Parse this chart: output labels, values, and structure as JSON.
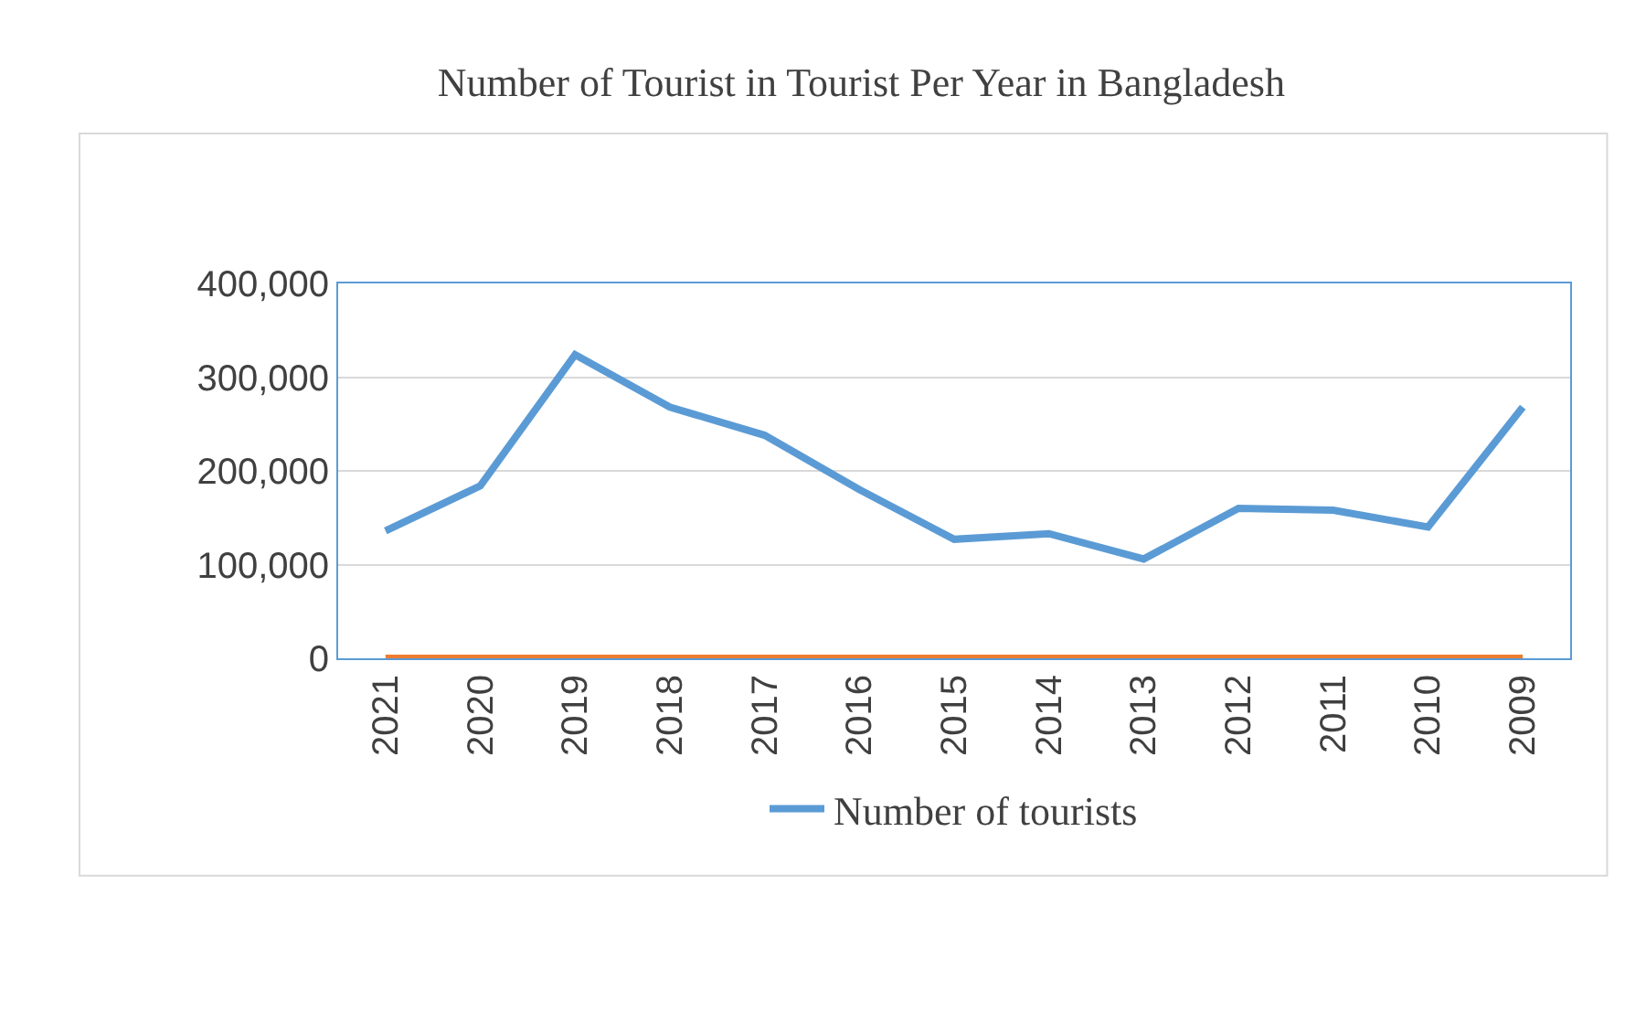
{
  "chart_data": {
    "type": "line",
    "title": "Number of Tourist in Tourist Per Year in Bangladesh",
    "categories": [
      "2021",
      "2020",
      "2019",
      "2018",
      "2017",
      "2016",
      "2015",
      "2014",
      "2013",
      "2012",
      "2011",
      "2010",
      "2009"
    ],
    "series": [
      {
        "name": "Number of tourists",
        "color": "#5b9bd5",
        "values": [
          136000,
          184000,
          324000,
          268000,
          238000,
          180000,
          127000,
          133000,
          106000,
          160000,
          158000,
          140000,
          268000
        ]
      },
      {
        "color": "#ed7d31",
        "values": [
          0,
          0,
          0,
          0,
          0,
          0,
          0,
          0,
          0,
          0,
          0,
          0,
          0
        ]
      }
    ],
    "ylim": [
      0,
      400000
    ],
    "yticks": [
      {
        "value": 0,
        "label": "0"
      },
      {
        "value": 100000,
        "label": "100,000"
      },
      {
        "value": 200000,
        "label": "200,000"
      },
      {
        "value": 300000,
        "label": "300,000"
      },
      {
        "value": 400000,
        "label": "400,000"
      }
    ],
    "grid": "y",
    "legend": "bottom",
    "line_style": "solid",
    "marker": "none"
  }
}
